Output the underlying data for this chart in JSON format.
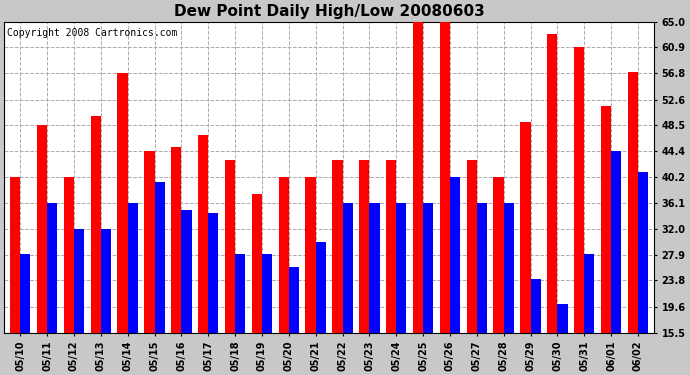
{
  "title": "Dew Point Daily High/Low 20080603",
  "copyright": "Copyright 2008 Cartronics.com",
  "dates": [
    "05/10",
    "05/11",
    "05/12",
    "05/13",
    "05/14",
    "05/15",
    "05/16",
    "05/17",
    "05/18",
    "05/19",
    "05/20",
    "05/21",
    "05/22",
    "05/23",
    "05/24",
    "05/25",
    "05/26",
    "05/27",
    "05/28",
    "05/29",
    "05/30",
    "05/31",
    "06/01",
    "06/02"
  ],
  "highs": [
    40.2,
    48.5,
    40.2,
    50.0,
    56.8,
    44.4,
    45.0,
    47.0,
    43.0,
    37.5,
    40.2,
    40.2,
    43.0,
    43.0,
    43.0,
    65.0,
    65.0,
    43.0,
    40.2,
    49.0,
    63.0,
    61.0,
    51.5,
    57.0
  ],
  "lows": [
    28.0,
    36.1,
    32.0,
    32.0,
    36.1,
    39.5,
    35.0,
    34.5,
    28.0,
    28.0,
    26.0,
    30.0,
    36.1,
    36.1,
    36.1,
    36.1,
    40.2,
    36.1,
    36.1,
    24.0,
    20.0,
    28.0,
    44.4,
    41.0
  ],
  "high_color": "#ff0000",
  "low_color": "#0000ff",
  "fig_bg_color": "#c8c8c8",
  "plot_bg_color": "#ffffff",
  "yticks": [
    15.5,
    19.6,
    23.8,
    27.9,
    32.0,
    36.1,
    40.2,
    44.4,
    48.5,
    52.6,
    56.8,
    60.9,
    65.0
  ],
  "ylim": [
    15.5,
    65.0
  ],
  "grid_color": "#aaaaaa",
  "bar_width": 0.38,
  "title_fontsize": 11,
  "tick_fontsize": 7,
  "copyright_fontsize": 7
}
